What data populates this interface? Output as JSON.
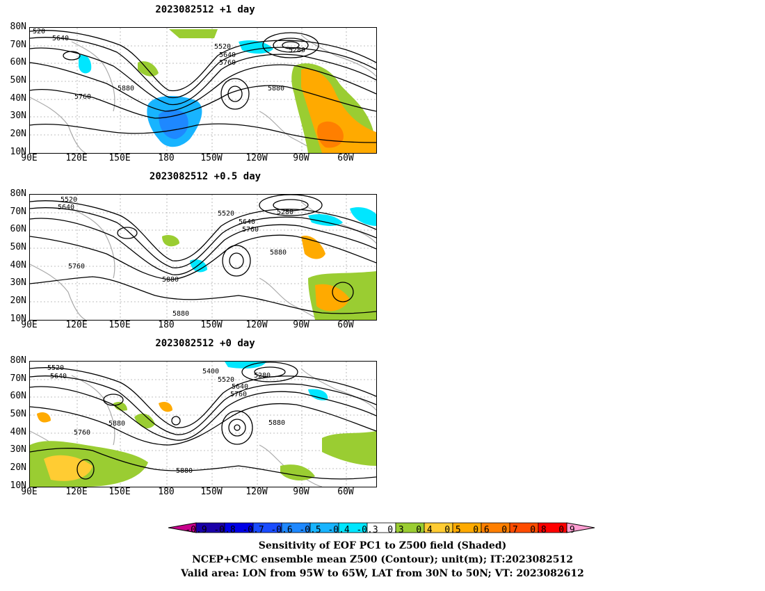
{
  "panels": [
    {
      "title": "2023082512 +1 day",
      "contour_labels": [
        "520",
        "5640",
        "5520",
        "5640",
        "5760",
        "5280",
        "5880",
        "5760",
        "5880"
      ]
    },
    {
      "title": "2023082512 +0.5 day",
      "contour_labels": [
        "5520",
        "5640",
        "5520",
        "5640",
        "5760",
        "5280",
        "5880",
        "5760",
        "5880",
        "5880"
      ]
    },
    {
      "title": "2023082512 +0 day",
      "contour_labels": [
        "5520",
        "5640",
        "5400",
        "5520",
        "5640",
        "5760",
        "5280",
        "5880",
        "5760",
        "5880",
        "5880"
      ]
    }
  ],
  "lat_labels": [
    "80N",
    "70N",
    "60N",
    "50N",
    "40N",
    "30N",
    "20N",
    "10N"
  ],
  "lon_labels": [
    "90E",
    "120E",
    "150E",
    "180",
    "150W",
    "120W",
    "90W",
    "60W"
  ],
  "colorbar": {
    "ticks": [
      "-0.9",
      "-0.8",
      "-0.7",
      "-0.6",
      "-0.5",
      "-0.4",
      "-0.3",
      "0.3",
      "0.4",
      "0.5",
      "0.6",
      "0.7",
      "0.8",
      "0.9"
    ],
    "colors": [
      "#1a00a8",
      "#0000e6",
      "#1a4cff",
      "#1e88ff",
      "#18b4ff",
      "#00e6ff",
      "#ffffff",
      "#9acd32",
      "#ffcc33",
      "#ffaa00",
      "#ff7f00",
      "#ff4c00",
      "#ff0000"
    ],
    "low_end_color": "#c8008c",
    "high_end_color": "#ff9ed2"
  },
  "captions": {
    "line1": "Sensitivity of EOF PC1 to Z500 field (Shaded)",
    "line2": "NCEP+CMC ensemble mean Z500 (Contour); unit(m); IT:2023082512",
    "line3": "Valid area: LON from 95W to 65W, LAT from 30N to 50N; VT: 2023082612"
  }
}
